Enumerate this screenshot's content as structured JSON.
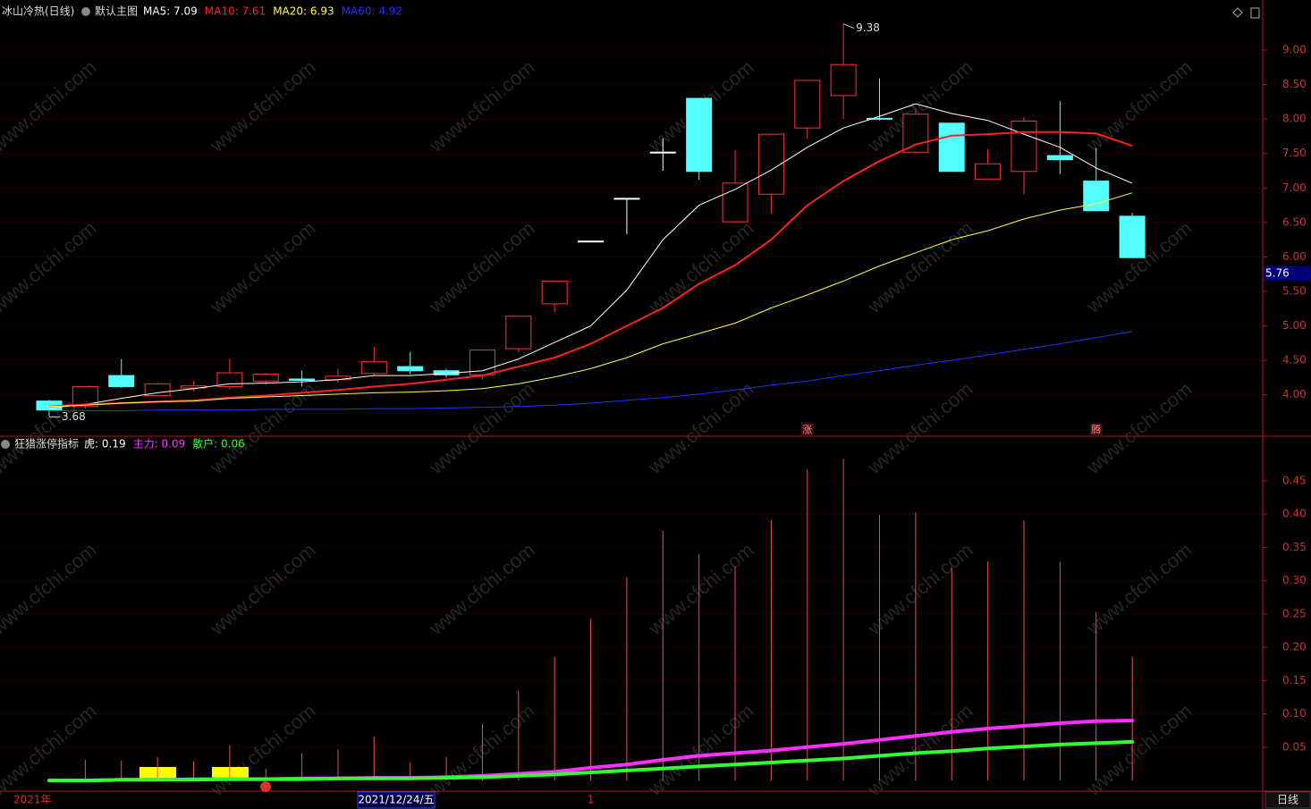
{
  "chart_data": [
    {
      "type": "candlestick",
      "title": "冰山冷热(日线)",
      "subtitle": "默认主图",
      "categories": [
        null,
        null,
        null,
        null,
        null,
        null,
        null,
        null,
        null,
        null,
        null,
        null,
        null,
        null,
        null,
        "1",
        null,
        null,
        null,
        null,
        null,
        null,
        null,
        null,
        null,
        null,
        null,
        null,
        null,
        null,
        null
      ],
      "signal_labels": [
        null,
        null,
        null,
        null,
        null,
        null,
        null,
        null,
        null,
        null,
        null,
        null,
        null,
        null,
        null,
        null,
        null,
        null,
        null,
        null,
        null,
        "涨",
        null,
        null,
        null,
        null,
        null,
        null,
        null,
        "腾",
        null
      ],
      "open": [
        3.91,
        3.83,
        4.28,
        3.99,
        4.1,
        4.12,
        4.2,
        4.23,
        4.22,
        4.31,
        4.41,
        4.35,
        4.29,
        4.67,
        5.32,
        6.23,
        6.85,
        7.52,
        8.3,
        6.51,
        6.91,
        7.87,
        8.34,
        8.01,
        7.52,
        7.94,
        7.13,
        7.24,
        7.47,
        7.1,
        6.59
      ],
      "high": [
        3.93,
        4.12,
        4.52,
        4.18,
        4.2,
        4.52,
        4.32,
        4.35,
        4.38,
        4.7,
        4.62,
        4.38,
        4.65,
        5.14,
        5.65,
        6.23,
        6.85,
        7.72,
        8.3,
        7.55,
        7.78,
        8.56,
        9.38,
        8.59,
        8.15,
        7.94,
        7.56,
        8.03,
        8.26,
        7.58,
        6.64
      ],
      "low": [
        3.68,
        3.8,
        4.1,
        3.98,
        4.05,
        4.08,
        4.15,
        4.12,
        4.18,
        4.28,
        4.3,
        4.25,
        4.22,
        4.62,
        5.2,
        6.23,
        6.33,
        7.25,
        7.12,
        6.51,
        6.63,
        7.71,
        8.0,
        7.98,
        7.5,
        7.24,
        7.13,
        6.91,
        7.2,
        6.67,
        5.99
      ],
      "close": [
        3.78,
        4.12,
        4.12,
        4.16,
        4.13,
        4.32,
        4.3,
        4.21,
        4.27,
        4.48,
        4.35,
        4.29,
        4.65,
        5.14,
        5.65,
        6.23,
        6.85,
        7.52,
        7.24,
        7.07,
        7.78,
        8.56,
        8.79,
        8.0,
        8.07,
        7.24,
        7.35,
        7.97,
        7.41,
        6.67,
        5.99
      ],
      "up_color": "#ff3232",
      "down_color": "#54ffff",
      "flat_color": "#ffffff",
      "series": [
        {
          "name": "MA5: 7.09",
          "color": "#ffffff",
          "values": [
            3.81,
            3.86,
            3.95,
            4.03,
            4.09,
            4.16,
            4.17,
            4.19,
            4.22,
            4.28,
            4.28,
            4.31,
            4.35,
            4.52,
            4.76,
            5.0,
            5.52,
            6.25,
            6.75,
            6.98,
            7.26,
            7.59,
            7.87,
            8.04,
            8.22,
            8.08,
            7.98,
            7.78,
            7.59,
            7.29,
            7.07
          ]
        },
        {
          "name": "MA10: 7.61",
          "color": "#ff2020",
          "values": [
            3.83,
            3.86,
            3.88,
            3.9,
            3.92,
            3.96,
            3.99,
            4.03,
            4.07,
            4.12,
            4.16,
            4.22,
            4.28,
            4.41,
            4.54,
            4.74,
            5.0,
            5.26,
            5.61,
            5.88,
            6.25,
            6.75,
            7.1,
            7.39,
            7.63,
            7.76,
            7.78,
            7.81,
            7.81,
            7.79,
            7.61
          ]
        },
        {
          "name": "MA20: 6.93",
          "color": "#ffff40",
          "values": [
            3.83,
            3.85,
            3.88,
            3.9,
            3.91,
            3.95,
            3.97,
            3.99,
            4.01,
            4.03,
            4.04,
            4.06,
            4.09,
            4.16,
            4.26,
            4.38,
            4.54,
            4.74,
            4.89,
            5.04,
            5.26,
            5.45,
            5.65,
            5.87,
            6.06,
            6.25,
            6.38,
            6.55,
            6.68,
            6.77,
            6.93
          ]
        },
        {
          "name": "MA60: 4.92",
          "color": "#2030ff",
          "values": [
            3.77,
            3.77,
            3.77,
            3.78,
            3.78,
            3.78,
            3.79,
            3.79,
            3.79,
            3.8,
            3.8,
            3.81,
            3.82,
            3.83,
            3.85,
            3.88,
            3.92,
            3.96,
            4.01,
            4.07,
            4.14,
            4.2,
            4.28,
            4.35,
            4.43,
            4.5,
            4.58,
            4.66,
            4.74,
            4.83,
            4.92
          ]
        }
      ],
      "ylim": [
        3.4,
        9.7
      ],
      "yticks": [
        {
          "value": 4,
          "label": "4.00"
        },
        {
          "value": 4.5,
          "label": "4.50"
        },
        {
          "value": 5,
          "label": "5.00"
        },
        {
          "value": 5.5,
          "label": "5.50"
        },
        {
          "value": 6,
          "label": "6.00"
        },
        {
          "value": 6.5,
          "label": "6.50"
        },
        {
          "value": 7,
          "label": "7.00"
        },
        {
          "value": 7.5,
          "label": "7.50"
        },
        {
          "value": 8,
          "label": "8.00"
        },
        {
          "value": 8.5,
          "label": "8.50"
        },
        {
          "value": 9,
          "label": "9.00"
        }
      ],
      "cursor_price": 5.76,
      "grid": true
    },
    {
      "type": "indicator",
      "title": "狂猎涨停指标",
      "series": [
        {
          "name": "虎: 0.19",
          "style": "bar",
          "color": "#e85050",
          "label_color": "#ffffff",
          "values": [
            null,
            0.031,
            0.03,
            0.035,
            0.029,
            0.053,
            0.018,
            0.041,
            0.047,
            0.066,
            0.027,
            0.035,
            0.085,
            0.135,
            0.186,
            0.243,
            0.305,
            0.375,
            0.34,
            0.321,
            0.391,
            0.467,
            0.483,
            0.399,
            0.403,
            0.32,
            0.329,
            0.391,
            0.328,
            0.253,
            0.186
          ]
        },
        {
          "name": "主力: 0.09",
          "style": "line",
          "color": "#ff30ff",
          "label_color": "#ff30ff",
          "values": [
            0,
            0,
            0.001,
            0.001,
            0.002,
            0.002,
            0.002,
            0.003,
            0.003,
            0.004,
            0.004,
            0.005,
            0.007,
            0.01,
            0.013,
            0.019,
            0.024,
            0.031,
            0.037,
            0.041,
            0.045,
            0.05,
            0.055,
            0.061,
            0.067,
            0.073,
            0.078,
            0.082,
            0.086,
            0.089,
            0.09
          ]
        },
        {
          "name": "散户: 0.06",
          "style": "line",
          "color": "#30ff30",
          "label_color": "#30ff30",
          "values": [
            0,
            0,
            0.001,
            0.001,
            0.001,
            0.002,
            0.002,
            0.002,
            0.003,
            0.003,
            0.003,
            0.004,
            0.005,
            0.007,
            0.009,
            0.012,
            0.015,
            0.018,
            0.021,
            0.024,
            0.027,
            0.03,
            0.033,
            0.037,
            0.041,
            0.044,
            0.048,
            0.051,
            0.054,
            0.056,
            0.058
          ]
        }
      ],
      "ylim": [
        -0.016,
        0.509
      ],
      "yticks": [
        0.05,
        {
          "value": 0.1,
          "label": "0.10"
        },
        0.15,
        {
          "value": 0.2,
          "label": "0.20"
        },
        0.25,
        {
          "value": 0.3,
          "label": "0.30"
        },
        0.35,
        {
          "value": 0.4,
          "label": "0.40"
        },
        0.45
      ],
      "grid": true
    }
  ],
  "year_label": "2021年",
  "cursor_date": "2021/12/24/五",
  "period_label": "日线",
  "watermark": "www.cfchi.com"
}
